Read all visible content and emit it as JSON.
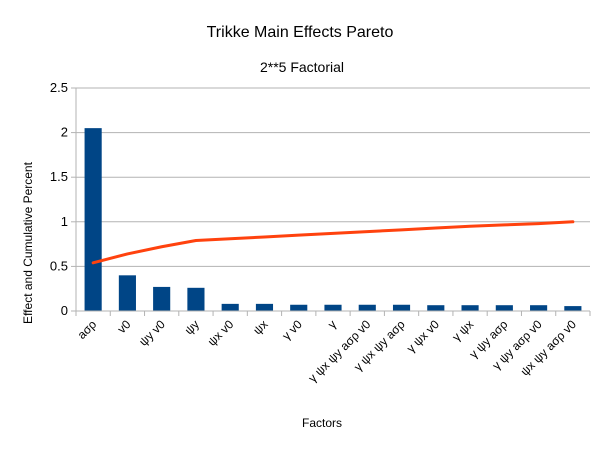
{
  "chart_data": {
    "type": "bar",
    "title": "Trikke Main Effects Pareto",
    "subtitle": "2**5 Factorial",
    "xlabel": "Factors",
    "ylabel": "Effect and Cumulative Percent",
    "ylim": [
      0,
      2.5
    ],
    "yticks": [
      "0",
      "0.5",
      "1",
      "1.5",
      "2",
      "2.5"
    ],
    "ytick_values": [
      0,
      0.5,
      1,
      1.5,
      2,
      2.5
    ],
    "grid": "horizontal",
    "legend": "none",
    "categories": [
      "aσρ",
      "v0",
      "ψy v0",
      "ψy",
      "ψx v0",
      "ψx",
      "γ v0",
      "γ",
      "γ ψx ψy aσρ v0",
      "γ ψx ψy aσρ",
      "γ ψx v0",
      "γ ψx",
      "γ ψy aσρ",
      "γ ψy aσρ v0",
      "ψx ψy aσρ v0"
    ],
    "series": [
      {
        "type": "bar",
        "color": "#004586",
        "values": [
          2.05,
          0.4,
          0.27,
          0.26,
          0.08,
          0.08,
          0.07,
          0.07,
          0.07,
          0.07,
          0.065,
          0.065,
          0.065,
          0.065,
          0.055
        ]
      },
      {
        "type": "line",
        "color": "#ff420e",
        "values": [
          0.54,
          0.64,
          0.72,
          0.79,
          0.81,
          0.83,
          0.85,
          0.87,
          0.89,
          0.91,
          0.93,
          0.95,
          0.965,
          0.98,
          1.0
        ]
      }
    ]
  }
}
